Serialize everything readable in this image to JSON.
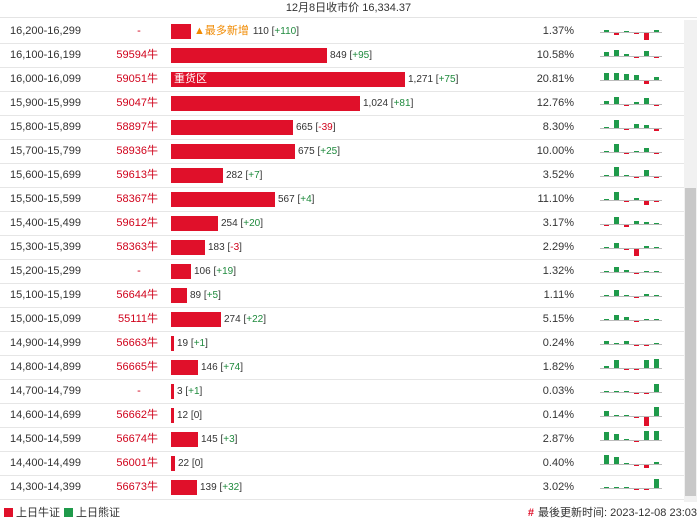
{
  "header": {
    "title": "12月8日收市价 16,334.37"
  },
  "max_count": 1271,
  "rows": [
    {
      "range": "16,200-16,299",
      "code": "-",
      "count": "110",
      "change": "+110",
      "pct": "1.37%",
      "count_value": 110,
      "tag": "▲最多新增",
      "mini": [
        [
          "g",
          2
        ],
        [
          "r",
          -2
        ],
        [
          "g",
          1
        ],
        [
          "r",
          -1
        ],
        [
          "r",
          -7
        ],
        [
          "g",
          2
        ]
      ]
    },
    {
      "range": "16,100-16,199",
      "code": "59594牛",
      "count": "849",
      "change": "+95",
      "pct": "10.58%",
      "count_value": 849,
      "mini": [
        [
          "g",
          4
        ],
        [
          "g",
          6
        ],
        [
          "g",
          2
        ],
        [
          "r",
          -1
        ],
        [
          "g",
          5
        ],
        [
          "r",
          -1
        ]
      ]
    },
    {
      "range": "16,000-16,099",
      "code": "59051牛",
      "count": "1,271",
      "change": "+75",
      "pct": "20.81%",
      "count_value": 1271,
      "label": "重货区",
      "mini": [
        [
          "g",
          7
        ],
        [
          "g",
          7
        ],
        [
          "g",
          6
        ],
        [
          "g",
          5
        ],
        [
          "r",
          -3
        ],
        [
          "g",
          3
        ]
      ]
    },
    {
      "range": "15,900-15,999",
      "code": "59047牛",
      "count": "1,024",
      "change": "+81",
      "pct": "12.76%",
      "count_value": 1024,
      "mini": [
        [
          "g",
          3
        ],
        [
          "g",
          7
        ],
        [
          "r",
          -1
        ],
        [
          "g",
          2
        ],
        [
          "g",
          6
        ],
        [
          "r",
          -1
        ]
      ]
    },
    {
      "range": "15,800-15,899",
      "code": "58897牛",
      "count": "665",
      "change": "-39",
      "pct": "8.30%",
      "count_value": 665,
      "mini": [
        [
          "g",
          1
        ],
        [
          "g",
          8
        ],
        [
          "r",
          -1
        ],
        [
          "g",
          4
        ],
        [
          "g",
          3
        ],
        [
          "r",
          -2
        ]
      ]
    },
    {
      "range": "15,700-15,799",
      "code": "58936牛",
      "count": "675",
      "change": "+25",
      "pct": "10.00%",
      "count_value": 675,
      "mini": [
        [
          "g",
          1
        ],
        [
          "g",
          8
        ],
        [
          "r",
          -1
        ],
        [
          "g",
          1
        ],
        [
          "g",
          4
        ],
        [
          "r",
          -1
        ]
      ]
    },
    {
      "range": "15,600-15,699",
      "code": "59613牛",
      "count": "282",
      "change": "+7",
      "pct": "3.52%",
      "count_value": 282,
      "mini": [
        [
          "g",
          1
        ],
        [
          "g",
          9
        ],
        [
          "g",
          1
        ],
        [
          "r",
          -1
        ],
        [
          "g",
          6
        ],
        [
          "r",
          -1
        ]
      ]
    },
    {
      "range": "15,500-15,599",
      "code": "58367牛",
      "count": "567",
      "change": "+4",
      "pct": "11.10%",
      "count_value": 567,
      "mini": [
        [
          "g",
          1
        ],
        [
          "g",
          8
        ],
        [
          "r",
          -1
        ],
        [
          "g",
          2
        ],
        [
          "r",
          -4
        ],
        [
          "r",
          -1
        ]
      ]
    },
    {
      "range": "15,400-15,499",
      "code": "59612牛",
      "count": "254",
      "change": "+20",
      "pct": "3.17%",
      "count_value": 254,
      "mini": [
        [
          "r",
          -1
        ],
        [
          "g",
          7
        ],
        [
          "r",
          -2
        ],
        [
          "g",
          3
        ],
        [
          "g",
          2
        ],
        [
          "g",
          1
        ]
      ]
    },
    {
      "range": "15,300-15,399",
      "code": "58363牛",
      "count": "183",
      "change": "-3",
      "pct": "2.29%",
      "count_value": 183,
      "mini": [
        [
          "g",
          1
        ],
        [
          "g",
          5
        ],
        [
          "r",
          -1
        ],
        [
          "r",
          -7
        ],
        [
          "g",
          2
        ],
        [
          "g",
          1
        ]
      ]
    },
    {
      "range": "15,200-15,299",
      "code": "-",
      "count": "106",
      "change": "+19",
      "pct": "1.32%",
      "count_value": 106,
      "mini": [
        [
          "g",
          1
        ],
        [
          "g",
          5
        ],
        [
          "g",
          2
        ],
        [
          "r",
          -1
        ],
        [
          "g",
          1
        ],
        [
          "g",
          1
        ]
      ]
    },
    {
      "range": "15,100-15,199",
      "code": "56644牛",
      "count": "89",
      "change": "+5",
      "pct": "1.11%",
      "count_value": 89,
      "mini": [
        [
          "g",
          1
        ],
        [
          "g",
          6
        ],
        [
          "g",
          1
        ],
        [
          "r",
          -1
        ],
        [
          "g",
          2
        ],
        [
          "g",
          1
        ]
      ]
    },
    {
      "range": "15,000-15,099",
      "code": "55111牛",
      "count": "274",
      "change": "+22",
      "pct": "5.15%",
      "count_value": 274,
      "mini": [
        [
          "g",
          1
        ],
        [
          "g",
          5
        ],
        [
          "g",
          3
        ],
        [
          "r",
          -1
        ],
        [
          "g",
          1
        ],
        [
          "g",
          1
        ]
      ]
    },
    {
      "range": "14,900-14,999",
      "code": "56663牛",
      "count": "19",
      "change": "+1",
      "pct": "0.24%",
      "count_value": 19,
      "mini": [
        [
          "g",
          3
        ],
        [
          "g",
          1
        ],
        [
          "g",
          3
        ],
        [
          "r",
          -1
        ],
        [
          "r",
          -1
        ],
        [
          "g",
          1
        ]
      ]
    },
    {
      "range": "14,800-14,899",
      "code": "56665牛",
      "count": "146",
      "change": "+74",
      "pct": "1.82%",
      "count_value": 146,
      "mini": [
        [
          "g",
          2
        ],
        [
          "g",
          8
        ],
        [
          "r",
          -1
        ],
        [
          "r",
          -1
        ],
        [
          "g",
          8
        ],
        [
          "g",
          9
        ]
      ]
    },
    {
      "range": "14,700-14,799",
      "code": "-",
      "count": "3",
      "change": "+1",
      "pct": "0.03%",
      "count_value": 3,
      "mini": [
        [
          "g",
          1
        ],
        [
          "g",
          1
        ],
        [
          "g",
          1
        ],
        [
          "r",
          -1
        ],
        [
          "r",
          -1
        ],
        [
          "g",
          8
        ]
      ]
    },
    {
      "range": "14,600-14,699",
      "code": "56662牛",
      "count": "12",
      "change": "0",
      "pct": "0.14%",
      "count_value": 12,
      "mini": [
        [
          "g",
          5
        ],
        [
          "g",
          1
        ],
        [
          "g",
          1
        ],
        [
          "r",
          -1
        ],
        [
          "r",
          -9
        ],
        [
          "g",
          9
        ]
      ]
    },
    {
      "range": "14,500-14,599",
      "code": "56674牛",
      "count": "145",
      "change": "+3",
      "pct": "2.87%",
      "count_value": 145,
      "mini": [
        [
          "g",
          8
        ],
        [
          "g",
          6
        ],
        [
          "g",
          1
        ],
        [
          "r",
          -1
        ],
        [
          "g",
          9
        ],
        [
          "g",
          9
        ]
      ]
    },
    {
      "range": "14,400-14,499",
      "code": "56001牛",
      "count": "22",
      "change": "0",
      "pct": "0.40%",
      "count_value": 22,
      "mini": [
        [
          "g",
          9
        ],
        [
          "g",
          7
        ],
        [
          "g",
          1
        ],
        [
          "r",
          -1
        ],
        [
          "r",
          -3
        ],
        [
          "g",
          2
        ]
      ]
    },
    {
      "range": "14,300-14,399",
      "code": "56673牛",
      "count": "139",
      "change": "+32",
      "pct": "3.02%",
      "count_value": 139,
      "mini": [
        [
          "g",
          1
        ],
        [
          "g",
          1
        ],
        [
          "g",
          1
        ],
        [
          "r",
          -1
        ],
        [
          "r",
          -1
        ],
        [
          "g",
          9
        ]
      ]
    }
  ],
  "footer": {
    "legend_bull": "上日牛证",
    "legend_bear": "上日熊证",
    "updated_hash": "#",
    "updated_text": "最後更新时间: 2023-12-08 23:03"
  },
  "colors": {
    "bull_red": "#e0102a",
    "bear_green": "#1f9a4a",
    "new_tag": "#f08a00"
  }
}
